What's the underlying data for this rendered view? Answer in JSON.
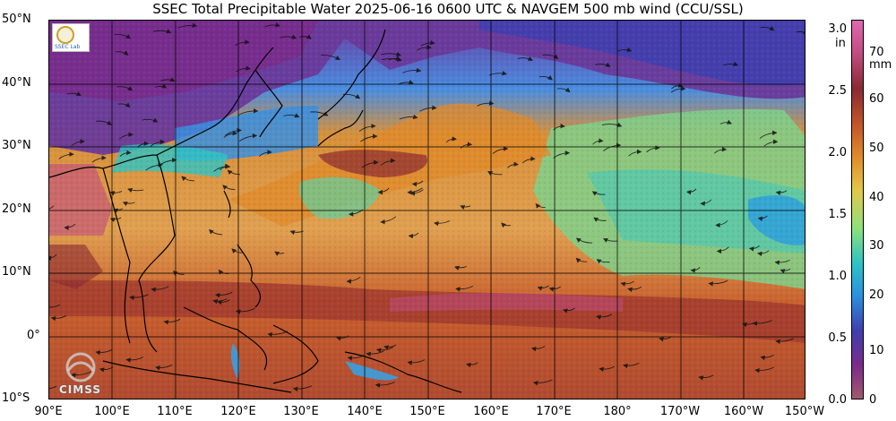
{
  "title": "SSEC Total Precipitable Water  2025-06-16 0600 UTC & NAVGEM 500 mb wind (CCU/SSL)",
  "lat_labels": [
    "50°N",
    "40°N",
    "30°N",
    "20°N",
    "10°N",
    "0°",
    "10°S"
  ],
  "lon_labels": [
    "90°E",
    "100°E",
    "110°E",
    "120°E",
    "130°E",
    "140°E",
    "150°E",
    "160°E",
    "170°E",
    "180°",
    "170°W",
    "160°W",
    "150°W"
  ],
  "colorbar": {
    "unit_in": "in",
    "unit_mm": "mm",
    "ticks_in": [
      "3.0",
      "2.5",
      "2.0",
      "1.5",
      "1.0",
      "0.5",
      "0.0"
    ],
    "ticks_mm": [
      "70",
      "60",
      "50",
      "40",
      "30",
      "20",
      "10",
      "0"
    ],
    "colors": [
      "#a05a6e",
      "#7a2b8a",
      "#3e3fb0",
      "#2b8fe0",
      "#2ec4c4",
      "#8ee07a",
      "#e2c84a",
      "#e08a2a",
      "#c0522a",
      "#8a2a32",
      "#c04a80",
      "#e06ab0"
    ]
  },
  "watermark": "CIMSS"
}
